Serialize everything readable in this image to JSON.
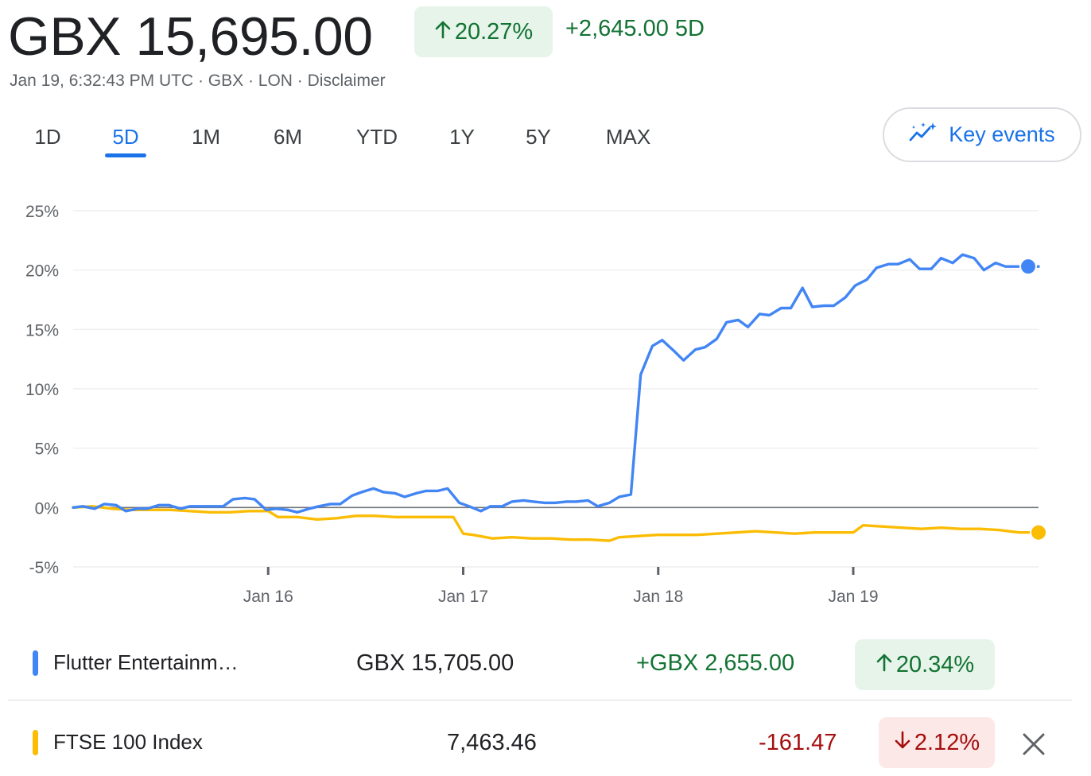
{
  "header": {
    "price": "GBX 15,695.00",
    "pct_change": "20.27%",
    "abs_change": "+2,645.00 5D",
    "meta": "Jan 19, 6:32:43 PM UTC · GBX · LON · Disclaimer"
  },
  "ranges": [
    "1D",
    "5D",
    "1M",
    "6M",
    "YTD",
    "1Y",
    "5Y",
    "MAX"
  ],
  "selected_range": "5D",
  "key_events": {
    "label": "Key events",
    "icon": "sparkle-chart-icon"
  },
  "colors": {
    "up_green": "#137333",
    "up_bg": "#e6f4ea",
    "down_red": "#a50e0e",
    "down_bg": "#fce8e6",
    "accent_blue": "#1a73e8",
    "series_blue": "#4285f4",
    "series_yellow": "#fbbc04"
  },
  "comparison": [
    {
      "name": "Flutter Entertainm…",
      "value": "GBX 15,705.00",
      "change": "+GBX 2,655.00",
      "pct": "20.34%",
      "direction": "up",
      "color": "#4285f4",
      "removable": false
    },
    {
      "name": "FTSE 100 Index",
      "value": "7,463.46",
      "change": "-161.47",
      "pct": "2.12%",
      "direction": "down",
      "color": "#fbbc04",
      "removable": true
    }
  ],
  "chart_data": {
    "type": "line",
    "y_ticks": [
      "25%",
      "20%",
      "15%",
      "10%",
      "5%",
      "0%",
      "-5%"
    ],
    "ylim": [
      -5,
      25
    ],
    "x_ticks": [
      "Jan 16",
      "Jan 17",
      "Jan 18",
      "Jan 19"
    ],
    "x_tick_positions": [
      1,
      2,
      3,
      4
    ],
    "xlim": [
      0,
      4.95
    ],
    "series": [
      {
        "name": "Flutter Entertainm…",
        "color": "#4285f4",
        "x": [
          0,
          0.05,
          0.11,
          0.16,
          0.22,
          0.27,
          0.33,
          0.38,
          0.44,
          0.49,
          0.55,
          0.6,
          0.66,
          0.71,
          0.77,
          0.82,
          0.88,
          0.93,
          0.99,
          1.04,
          1.1,
          1.15,
          1.21,
          1.26,
          1.32,
          1.37,
          1.43,
          1.48,
          1.54,
          1.59,
          1.65,
          1.7,
          1.76,
          1.81,
          1.87,
          1.92,
          1.98,
          2.03,
          2.09,
          2.14,
          2.2,
          2.25,
          2.31,
          2.36,
          2.42,
          2.47,
          2.53,
          2.58,
          2.64,
          2.69,
          2.75,
          2.8,
          2.86,
          2.91,
          2.97,
          3.02,
          3.08,
          3.13,
          3.19,
          3.24,
          3.3,
          3.35,
          3.41,
          3.46,
          3.52,
          3.57,
          3.63,
          3.68,
          3.74,
          3.79,
          3.85,
          3.9,
          3.96,
          4.01,
          4.07,
          4.12,
          4.18,
          4.23,
          4.29,
          4.34,
          4.4,
          4.45,
          4.51,
          4.56,
          4.62,
          4.67,
          4.73,
          4.78,
          4.84,
          4.89,
          4.95
        ],
        "y": [
          0,
          0.1,
          -0.1,
          0.3,
          0.2,
          -0.3,
          -0.1,
          -0.1,
          0.2,
          0.2,
          -0.1,
          0.1,
          0.1,
          0.1,
          0.1,
          0.7,
          0.8,
          0.7,
          -0.2,
          -0.1,
          -0.2,
          -0.4,
          -0.1,
          0.1,
          0.3,
          0.3,
          1.0,
          1.3,
          1.6,
          1.3,
          1.2,
          0.9,
          1.2,
          1.4,
          1.4,
          1.6,
          0.4,
          0.1,
          -0.3,
          0.1,
          0.1,
          0.5,
          0.6,
          0.5,
          0.4,
          0.4,
          0.5,
          0.5,
          0.6,
          0.1,
          0.4,
          0.9,
          1.1,
          11.2,
          13.6,
          14.1,
          13.2,
          12.4,
          13.3,
          13.5,
          14.2,
          15.6,
          15.8,
          15.2,
          16.3,
          16.2,
          16.8,
          16.8,
          18.5,
          16.9,
          17.0,
          17.0,
          17.7,
          18.7,
          19.2,
          20.2,
          20.5,
          20.5,
          20.9,
          20.1,
          20.1,
          21.0,
          20.6,
          21.3,
          21.0,
          20.0,
          20.6,
          20.3,
          20.3,
          20.3,
          20.3
        ]
      },
      {
        "name": "FTSE 100 Index",
        "color": "#fbbc04",
        "x": [
          0,
          0.1,
          0.2,
          0.3,
          0.4,
          0.5,
          0.6,
          0.7,
          0.8,
          0.9,
          1.0,
          1.05,
          1.15,
          1.25,
          1.35,
          1.45,
          1.55,
          1.65,
          1.75,
          1.85,
          1.95,
          2.0,
          2.05,
          2.15,
          2.25,
          2.35,
          2.45,
          2.55,
          2.65,
          2.75,
          2.8,
          2.9,
          3.0,
          3.1,
          3.2,
          3.3,
          3.4,
          3.5,
          3.6,
          3.7,
          3.8,
          3.9,
          4.0,
          4.05,
          4.15,
          4.25,
          4.35,
          4.45,
          4.55,
          4.65,
          4.75,
          4.85,
          4.95
        ],
        "y": [
          0,
          0.1,
          -0.1,
          -0.2,
          -0.2,
          -0.2,
          -0.3,
          -0.4,
          -0.4,
          -0.3,
          -0.3,
          -0.8,
          -0.8,
          -1.0,
          -0.9,
          -0.7,
          -0.7,
          -0.8,
          -0.8,
          -0.8,
          -0.8,
          -2.2,
          -2.3,
          -2.6,
          -2.5,
          -2.6,
          -2.6,
          -2.7,
          -2.7,
          -2.8,
          -2.5,
          -2.4,
          -2.3,
          -2.3,
          -2.3,
          -2.2,
          -2.1,
          -2.0,
          -2.1,
          -2.2,
          -2.1,
          -2.1,
          -2.1,
          -1.5,
          -1.6,
          -1.7,
          -1.8,
          -1.7,
          -1.8,
          -1.8,
          -1.9,
          -2.1,
          -2.1
        ]
      }
    ],
    "baseline": 0,
    "grid": true,
    "end_markers": true
  }
}
